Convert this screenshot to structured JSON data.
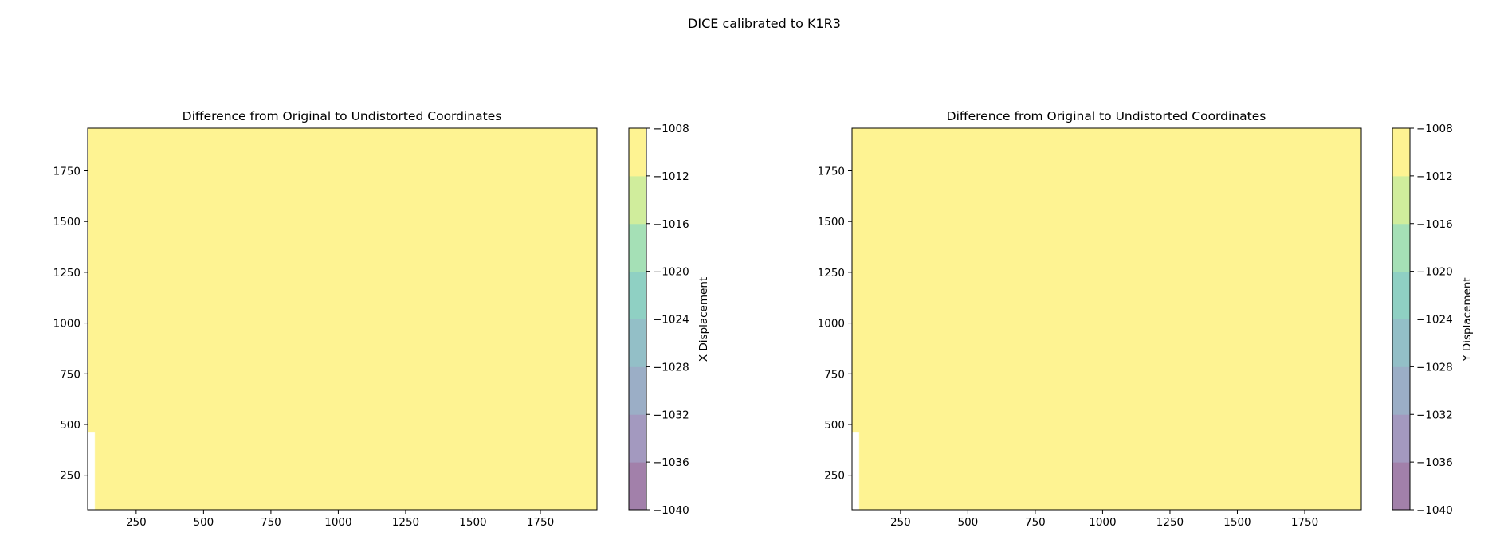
{
  "figure": {
    "suptitle": "DICE calibrated to K1R3"
  },
  "palette": [
    "#440154",
    "#46327e",
    "#365c8d",
    "#277f8e",
    "#1fa187",
    "#4ac16d",
    "#a0da39",
    "#fde725"
  ],
  "chart_data": [
    {
      "type": "contour",
      "title": "Difference from Original to Undistorted Coordinates",
      "xlabel": "",
      "ylabel": "",
      "colorbar_label": "X Displacement",
      "xlim": [
        70,
        1960
      ],
      "ylim": [
        80,
        1960
      ],
      "xticks": [
        250,
        500,
        750,
        1000,
        1250,
        1500,
        1750
      ],
      "yticks": [
        250,
        500,
        750,
        1000,
        1250,
        1500,
        1750
      ],
      "levels": [
        -1040,
        -1036,
        -1032,
        -1028,
        -1024,
        -1020,
        -1016,
        -1012,
        -1008
      ],
      "colorbar_ticks": [
        "−1008",
        "−1012",
        "−1016",
        "−1020",
        "−1024",
        "−1028",
        "−1032",
        "−1036",
        "−1040"
      ],
      "alpha": 0.5,
      "pattern": "x",
      "center": 1024
    },
    {
      "type": "contour",
      "title": "Difference from Original to Undistorted Coordinates",
      "xlabel": "",
      "ylabel": "",
      "colorbar_label": "Y Displacement",
      "xlim": [
        70,
        1960
      ],
      "ylim": [
        80,
        1960
      ],
      "xticks": [
        250,
        500,
        750,
        1000,
        1250,
        1500,
        1750
      ],
      "yticks": [
        250,
        500,
        750,
        1000,
        1250,
        1500,
        1750
      ],
      "levels": [
        -1040,
        -1036,
        -1032,
        -1028,
        -1024,
        -1020,
        -1016,
        -1012,
        -1008
      ],
      "colorbar_ticks": [
        "−1008",
        "−1012",
        "−1016",
        "−1020",
        "−1024",
        "−1028",
        "−1032",
        "−1036",
        "−1040"
      ],
      "alpha": 0.5,
      "pattern": "y",
      "center": 1024
    }
  ]
}
